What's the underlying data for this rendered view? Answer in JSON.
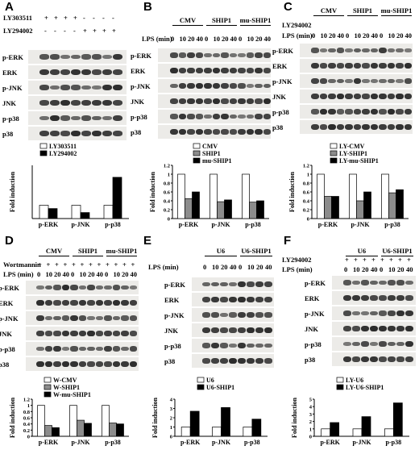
{
  "panels": [
    {
      "id": "A",
      "conditions": [
        {
          "label": "LY303511",
          "marks": [
            "+",
            "+",
            "+",
            "+",
            "-",
            "-",
            "-",
            "-"
          ]
        },
        {
          "label": "LY294002",
          "marks": [
            "-",
            "-",
            "-",
            "-",
            "+",
            "+",
            "+",
            "+"
          ]
        }
      ],
      "groups": [],
      "lps_label": "LPS (min)",
      "lps_times": [
        "0",
        "10",
        "20",
        "40",
        "0",
        "10",
        "20",
        "40"
      ],
      "blots": [
        "p-ERK",
        "ERK",
        "p-JNK",
        "JNK",
        "p-p38",
        "p38"
      ],
      "legend": [
        "LY303511",
        "LY294002"
      ]
    },
    {
      "id": "B",
      "conditions": [],
      "groups": [
        "CMV",
        "SHIP1",
        "mu-SHIP1"
      ],
      "lps_label": "LPS (min)",
      "lps_times": [
        "0",
        "10",
        "20",
        "40",
        "0",
        "10",
        "20",
        "40",
        "0",
        "10",
        "20",
        "40"
      ],
      "blots": [
        "p-ERK",
        "ERK",
        "p-JNK",
        "JNK",
        "p-p38",
        "p38"
      ],
      "legend": [
        "CMV",
        "SHIP1",
        "mu-SHIP1"
      ]
    },
    {
      "id": "C",
      "conditions": [
        {
          "label": "LY294002",
          "marks": []
        }
      ],
      "groups": [
        "CMV",
        "SHIP1",
        "mu-SHIP1"
      ],
      "lps_label": "LPS (min)",
      "lps_times": [
        "0",
        "10",
        "20",
        "40",
        "0",
        "10",
        "20",
        "40",
        "0",
        "10",
        "20",
        "40"
      ],
      "blots": [
        "p-ERK",
        "ERK",
        "p-JNK",
        "JNK",
        "p-p38",
        "p38"
      ],
      "legend": [
        "LY-CMV",
        "LY-SHIP1",
        "LY-mu-SHIP1"
      ]
    },
    {
      "id": "D",
      "conditions": [
        {
          "label": "Wortmannin",
          "marks": [
            "+",
            "+",
            "+",
            "+",
            "+",
            "+",
            "+",
            "+",
            "+",
            "+",
            "+",
            "+"
          ]
        }
      ],
      "groups": [
        "CMV",
        "SHIP1",
        "mu-SHIP1"
      ],
      "lps_label": "LPS (min)",
      "lps_times": [
        "0",
        "10",
        "20",
        "40",
        "0",
        "10",
        "20",
        "40",
        "0",
        "10",
        "20",
        "40"
      ],
      "blots": [
        "p-ERK",
        "ERK",
        "p-JNK",
        "JNK",
        "p-p38",
        "p38"
      ],
      "legend": [
        "W-CMV",
        "W-SHIP1",
        "W-mu-SHIP1"
      ]
    },
    {
      "id": "E",
      "conditions": [],
      "groups": [
        "U6",
        "U6-SHIP1"
      ],
      "lps_label": "LPS (min)",
      "lps_times": [
        "0",
        "10",
        "20",
        "40",
        "0",
        "10",
        "20",
        "40"
      ],
      "blots": [
        "p-ERK",
        "ERK",
        "p-JNK",
        "JNK",
        "p-p38",
        "p38"
      ],
      "legend": [
        "U6",
        "U6-SHIP1"
      ]
    },
    {
      "id": "F",
      "conditions": [
        {
          "label": "LY294002",
          "marks": [
            "+",
            "+",
            "+",
            "+",
            "+",
            "+",
            "+",
            "+"
          ]
        }
      ],
      "groups": [
        "U6",
        "U6-SHIP1"
      ],
      "lps_label": "LPS (min)",
      "lps_times": [
        "0",
        "10",
        "20",
        "40",
        "0",
        "10",
        "20",
        "40"
      ],
      "blots": [
        "p-ERK",
        "ERK",
        "p-JNK",
        "JNK",
        "p-p38",
        "p38"
      ],
      "legend": [
        "LY-U6",
        "LY-U6-SHIP1"
      ]
    }
  ],
  "colors": {
    "white_bar": "#ffffff",
    "gray_bar": "#8c8c8c",
    "black_bar": "#000000"
  },
  "chart_data": [
    {
      "panel": "A",
      "type": "bar",
      "categories": [
        "p-ERK",
        "p-JNK",
        "p-p38"
      ],
      "ylabel": "Fold induction",
      "ylim": [
        0,
        4
      ],
      "yticks": [],
      "series": [
        {
          "name": "LY303511",
          "values": [
            1.0,
            1.0,
            1.0
          ],
          "color": "#ffffff"
        },
        {
          "name": "LY294002",
          "values": [
            0.75,
            0.45,
            3.1
          ],
          "color": "#000000"
        }
      ]
    },
    {
      "panel": "B",
      "type": "bar",
      "categories": [
        "p-ERK",
        "p-JNK",
        "p-p38"
      ],
      "ylabel": "Fold induction",
      "ylim": [
        0,
        1.2
      ],
      "yticks": [
        "0",
        "0.2",
        "0.4",
        "0.6",
        "0.8",
        "1",
        "1.2"
      ],
      "series": [
        {
          "name": "CMV",
          "values": [
            1.0,
            1.0,
            1.0
          ],
          "color": "#ffffff"
        },
        {
          "name": "SHIP1",
          "values": [
            0.45,
            0.38,
            0.37
          ],
          "color": "#8c8c8c"
        },
        {
          "name": "mu-SHIP1",
          "values": [
            0.6,
            0.42,
            0.4
          ],
          "color": "#000000"
        }
      ]
    },
    {
      "panel": "C",
      "type": "bar",
      "categories": [
        "p-ERK",
        "p-JNK",
        "p-p38"
      ],
      "ylabel": "Fold induction",
      "ylim": [
        0,
        1.2
      ],
      "yticks": [
        "0",
        "0.2",
        "0.4",
        "0.6",
        "0.8",
        "1",
        "1.2"
      ],
      "series": [
        {
          "name": "LY-CMV",
          "values": [
            1.0,
            1.0,
            1.0
          ],
          "color": "#ffffff"
        },
        {
          "name": "LY-SHIP1",
          "values": [
            0.5,
            0.4,
            0.58
          ],
          "color": "#8c8c8c"
        },
        {
          "name": "LY-mu-SHIP1",
          "values": [
            0.5,
            0.6,
            0.65
          ],
          "color": "#000000"
        }
      ]
    },
    {
      "panel": "D",
      "type": "bar",
      "categories": [
        "p-ERK",
        "p-JNK",
        "p-p38"
      ],
      "ylabel": "Fold induction",
      "ylim": [
        0,
        1.2
      ],
      "yticks": [
        "0",
        "0.2",
        "0.4",
        "0.6",
        "0.8",
        "1",
        "1.2"
      ],
      "series": [
        {
          "name": "W-CMV",
          "values": [
            1.0,
            1.0,
            1.0
          ],
          "color": "#ffffff"
        },
        {
          "name": "W-SHIP1",
          "values": [
            0.35,
            0.52,
            0.43
          ],
          "color": "#8c8c8c"
        },
        {
          "name": "W-mu-SHIP1",
          "values": [
            0.28,
            0.42,
            0.4
          ],
          "color": "#000000"
        }
      ]
    },
    {
      "panel": "E",
      "type": "bar",
      "categories": [
        "p-ERK",
        "p-JNK",
        "p-p38"
      ],
      "ylabel": "Fold induction",
      "ylim": [
        0,
        4
      ],
      "yticks": [
        "0",
        "1",
        "2",
        "3",
        "4"
      ],
      "series": [
        {
          "name": "U6",
          "values": [
            1.0,
            1.0,
            1.0
          ],
          "color": "#ffffff"
        },
        {
          "name": "U6-SHIP1",
          "values": [
            2.7,
            3.1,
            1.85
          ],
          "color": "#000000"
        }
      ]
    },
    {
      "panel": "F",
      "type": "bar",
      "categories": [
        "p-ERK",
        "p-JNK",
        "p-p38"
      ],
      "ylabel": "Fold induction",
      "ylim": [
        0,
        5
      ],
      "yticks": [
        "0",
        "1",
        "2",
        "3",
        "4",
        "5"
      ],
      "series": [
        {
          "name": "LY-U6",
          "values": [
            1.0,
            1.0,
            1.0
          ],
          "color": "#ffffff"
        },
        {
          "name": "LY-U6-SHIP1",
          "values": [
            1.85,
            2.65,
            4.5
          ],
          "color": "#000000"
        }
      ]
    }
  ]
}
